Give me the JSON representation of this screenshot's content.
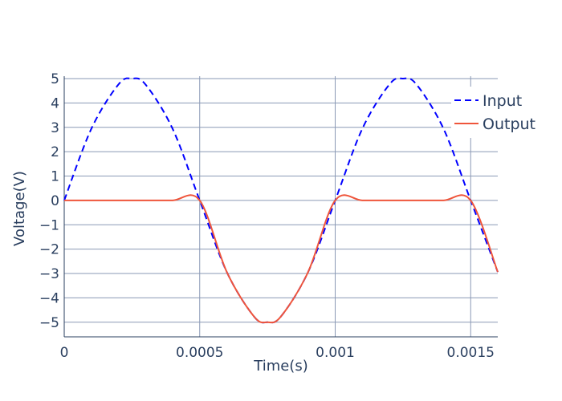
{
  "chart_data": {
    "type": "line",
    "xlabel": "Time(s)",
    "ylabel": "Voltage(V)",
    "xlim": [
      0,
      0.0016
    ],
    "ylim": [
      -5.6,
      5.1
    ],
    "x_ticks": [
      0,
      0.0005,
      0.001,
      0.0015
    ],
    "x_tick_labels": [
      "0",
      "0.0005",
      "0.001",
      "0.0015"
    ],
    "y_ticks": [
      5,
      4,
      3,
      2,
      1,
      0,
      -1,
      -2,
      -3,
      -4,
      -5
    ],
    "y_tick_labels": [
      "5",
      "4",
      "3",
      "2",
      "1",
      "0",
      "−1",
      "−2",
      "−3",
      "−4",
      "−5"
    ],
    "grid": true,
    "legend_position": "top-right",
    "series": [
      {
        "name": "Input",
        "color": "#0000ff",
        "dash": "dashed",
        "x": [
          0,
          0.0001,
          0.0002,
          0.00025,
          0.0003,
          0.0004,
          0.0005,
          0.0006,
          0.0007,
          0.00075,
          0.0008,
          0.0009,
          0.001,
          0.0011,
          0.0012,
          0.00125,
          0.0013,
          0.0014,
          0.0015,
          0.0016
        ],
        "y": [
          0,
          2.94,
          4.76,
          5,
          4.76,
          2.94,
          0,
          -2.94,
          -4.76,
          -5,
          -4.76,
          -2.94,
          0,
          2.94,
          4.76,
          5,
          4.76,
          2.94,
          0,
          -2.94
        ]
      },
      {
        "name": "Output",
        "color": "#ef553b",
        "dash": "solid",
        "x": [
          0,
          0.0001,
          0.0002,
          0.0003,
          0.0004,
          0.0005,
          0.0006,
          0.0007,
          0.00075,
          0.0008,
          0.0009,
          0.001,
          0.0011,
          0.0012,
          0.0013,
          0.0014,
          0.0015,
          0.0016
        ],
        "y": [
          0,
          0,
          0,
          0,
          0,
          0,
          -2.94,
          -4.76,
          -5,
          -4.76,
          -2.94,
          0,
          0,
          0,
          0,
          0,
          0,
          -2.94
        ]
      }
    ]
  }
}
